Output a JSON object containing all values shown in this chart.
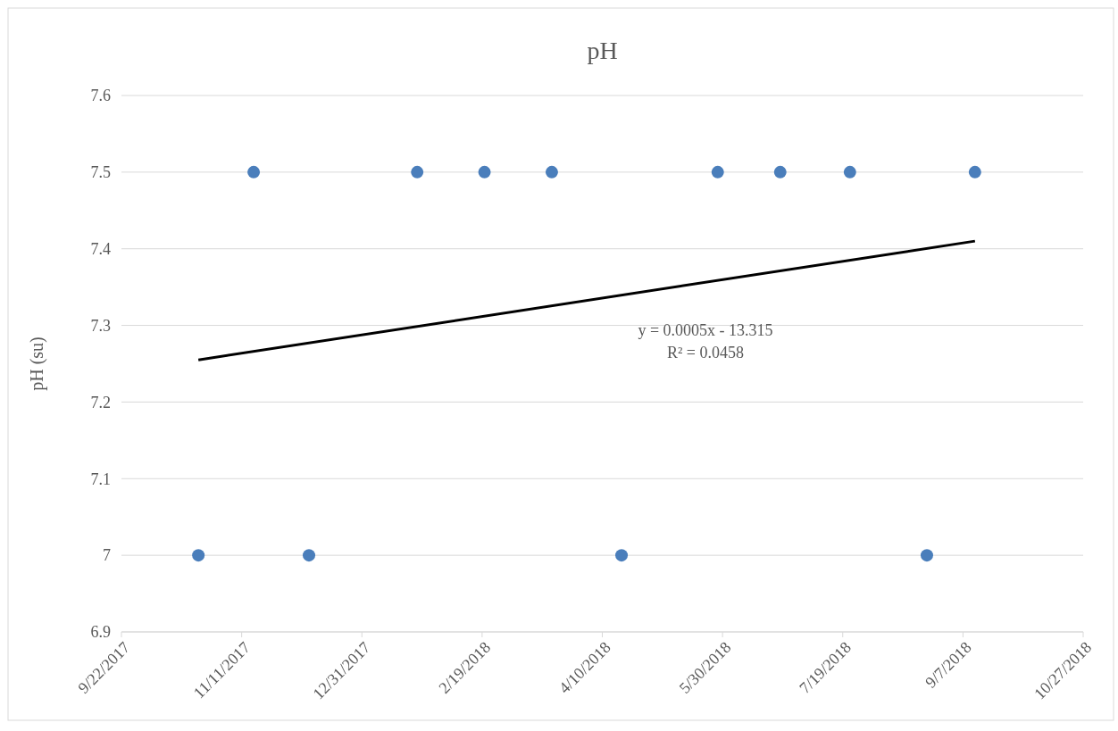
{
  "chart_data": {
    "type": "scatter",
    "title": "pH",
    "ylabel": "pH (su)",
    "series": [
      {
        "type": "scatter",
        "color": "#4a7ebb",
        "x": [
          "2017-10-24",
          "2017-11-16",
          "2017-12-09",
          "2018-01-23",
          "2018-02-20",
          "2018-03-20",
          "2018-04-18",
          "2018-05-28",
          "2018-06-23",
          "2018-07-22",
          "2018-08-23",
          "2018-09-12"
        ],
        "values": [
          7.0,
          7.5,
          7.0,
          7.5,
          7.5,
          7.5,
          7.0,
          7.5,
          7.5,
          7.5,
          7.0,
          7.5
        ],
        "marker": "circle"
      },
      {
        "type": "line",
        "color": "#000000",
        "x": [
          "2017-10-24",
          "2018-09-12"
        ],
        "values": [
          7.255,
          7.41
        ],
        "marker": "none",
        "line_style": "solid"
      }
    ],
    "xlim": [
      "2017-09-22",
      "2018-10-27"
    ],
    "xticks": [
      {
        "value": "2017-09-22",
        "label": "9/22/2017"
      },
      {
        "value": "2017-11-11",
        "label": "11/11/2017"
      },
      {
        "value": "2017-12-31",
        "label": "12/31/2017"
      },
      {
        "value": "2018-02-19",
        "label": "2/19/2018"
      },
      {
        "value": "2018-04-10",
        "label": "4/10/2018"
      },
      {
        "value": "2018-05-30",
        "label": "5/30/2018"
      },
      {
        "value": "2018-07-19",
        "label": "7/19/2018"
      },
      {
        "value": "2018-09-07",
        "label": "9/7/2018"
      },
      {
        "value": "2018-10-27",
        "label": "10/27/2018"
      }
    ],
    "ylim": [
      6.9,
      7.6
    ],
    "yticks": [
      6.9,
      7,
      7.1,
      7.2,
      7.3,
      7.4,
      7.5,
      7.6
    ],
    "grid": "y",
    "annotations": [
      "y = 0.0005x - 13.315",
      "R² = 0.0458"
    ]
  }
}
